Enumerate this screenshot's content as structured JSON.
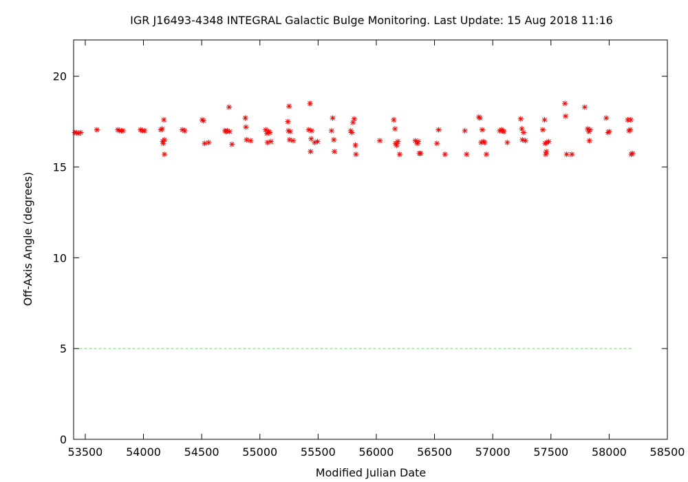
{
  "chart_data": {
    "type": "scatter",
    "title": "IGR J16493-4348   INTEGRAL Galactic Bulge Monitoring.  Last Update: 15 Aug 2018 11:16",
    "xlabel": "Modified Julian Date",
    "ylabel": "Off-Axis Angle (degrees)",
    "xlim": [
      53400,
      58500
    ],
    "ylim": [
      0,
      22
    ],
    "xticks": [
      53500,
      54000,
      54500,
      55000,
      55500,
      56000,
      56500,
      57000,
      57500,
      58000,
      58500
    ],
    "yticks": [
      0,
      5,
      10,
      15,
      20
    ],
    "grid": false,
    "legend": "none",
    "marker": "asterisk",
    "marker_color": "#ff0000",
    "reference_line": {
      "y": 5,
      "x_range": [
        53450,
        58200
      ],
      "style": "dashed",
      "color": "#66e066"
    },
    "series": [
      {
        "points": [
          [
            53410,
            16.9
          ],
          [
            53425,
            16.9
          ],
          [
            53440,
            16.85
          ],
          [
            53460,
            16.9
          ],
          [
            53600,
            17.05
          ],
          [
            53780,
            17.05
          ],
          [
            53795,
            17.0
          ],
          [
            53810,
            17.0
          ],
          [
            53825,
            17.0
          ],
          [
            53975,
            17.05
          ],
          [
            53990,
            17.0
          ],
          [
            54010,
            17.0
          ],
          [
            54150,
            17.05
          ],
          [
            54160,
            17.1
          ],
          [
            54165,
            16.4
          ],
          [
            54170,
            16.3
          ],
          [
            54175,
            17.6
          ],
          [
            54180,
            16.5
          ],
          [
            54180,
            15.7
          ],
          [
            54335,
            17.05
          ],
          [
            54355,
            17.0
          ],
          [
            54505,
            17.6
          ],
          [
            54515,
            17.55
          ],
          [
            54525,
            16.3
          ],
          [
            54560,
            16.35
          ],
          [
            54700,
            17.0
          ],
          [
            54710,
            16.95
          ],
          [
            54720,
            17.0
          ],
          [
            54735,
            18.3
          ],
          [
            54740,
            16.95
          ],
          [
            54760,
            16.25
          ],
          [
            54875,
            17.7
          ],
          [
            54880,
            17.2
          ],
          [
            54885,
            16.5
          ],
          [
            54920,
            16.45
          ],
          [
            55050,
            17.05
          ],
          [
            55060,
            16.85
          ],
          [
            55065,
            16.35
          ],
          [
            55075,
            16.95
          ],
          [
            55085,
            16.9
          ],
          [
            55095,
            16.4
          ],
          [
            55240,
            17.5
          ],
          [
            55245,
            17.0
          ],
          [
            55250,
            18.35
          ],
          [
            55255,
            16.5
          ],
          [
            55260,
            16.95
          ],
          [
            55285,
            16.45
          ],
          [
            55420,
            17.05
          ],
          [
            55430,
            18.5
          ],
          [
            55435,
            15.85
          ],
          [
            55440,
            16.55
          ],
          [
            55445,
            17.0
          ],
          [
            55470,
            16.35
          ],
          [
            55495,
            16.4
          ],
          [
            55615,
            17.0
          ],
          [
            55625,
            17.7
          ],
          [
            55635,
            16.5
          ],
          [
            55640,
            15.85
          ],
          [
            55780,
            17.0
          ],
          [
            55790,
            16.9
          ],
          [
            55800,
            17.45
          ],
          [
            55810,
            17.65
          ],
          [
            55820,
            16.2
          ],
          [
            55825,
            15.7
          ],
          [
            56030,
            16.45
          ],
          [
            56150,
            17.6
          ],
          [
            56160,
            17.1
          ],
          [
            56165,
            16.3
          ],
          [
            56175,
            16.2
          ],
          [
            56185,
            16.4
          ],
          [
            56200,
            15.7
          ],
          [
            56335,
            16.45
          ],
          [
            56350,
            16.3
          ],
          [
            56360,
            16.4
          ],
          [
            56370,
            15.75
          ],
          [
            56380,
            15.75
          ],
          [
            56520,
            16.3
          ],
          [
            56535,
            17.05
          ],
          [
            56590,
            15.7
          ],
          [
            56760,
            17.0
          ],
          [
            56775,
            15.7
          ],
          [
            56880,
            17.75
          ],
          [
            56890,
            17.7
          ],
          [
            56900,
            16.35
          ],
          [
            56910,
            17.05
          ],
          [
            56920,
            16.4
          ],
          [
            56930,
            16.35
          ],
          [
            56945,
            15.7
          ],
          [
            57060,
            17.0
          ],
          [
            57075,
            17.05
          ],
          [
            57085,
            17.0
          ],
          [
            57095,
            16.95
          ],
          [
            57125,
            16.35
          ],
          [
            57240,
            17.65
          ],
          [
            57250,
            17.1
          ],
          [
            57255,
            16.5
          ],
          [
            57265,
            16.9
          ],
          [
            57280,
            16.45
          ],
          [
            57430,
            17.05
          ],
          [
            57445,
            17.6
          ],
          [
            57450,
            16.3
          ],
          [
            57455,
            15.7
          ],
          [
            57460,
            15.85
          ],
          [
            57465,
            16.35
          ],
          [
            57480,
            16.4
          ],
          [
            57620,
            18.5
          ],
          [
            57625,
            17.8
          ],
          [
            57635,
            15.7
          ],
          [
            57680,
            15.7
          ],
          [
            57790,
            18.3
          ],
          [
            57815,
            17.1
          ],
          [
            57825,
            16.95
          ],
          [
            57835,
            17.05
          ],
          [
            57830,
            16.45
          ],
          [
            57975,
            17.7
          ],
          [
            57990,
            16.9
          ],
          [
            58000,
            16.95
          ],
          [
            58160,
            17.6
          ],
          [
            58170,
            17.0
          ],
          [
            58180,
            17.05
          ],
          [
            58185,
            17.6
          ],
          [
            58190,
            15.7
          ],
          [
            58200,
            15.75
          ]
        ]
      }
    ]
  }
}
